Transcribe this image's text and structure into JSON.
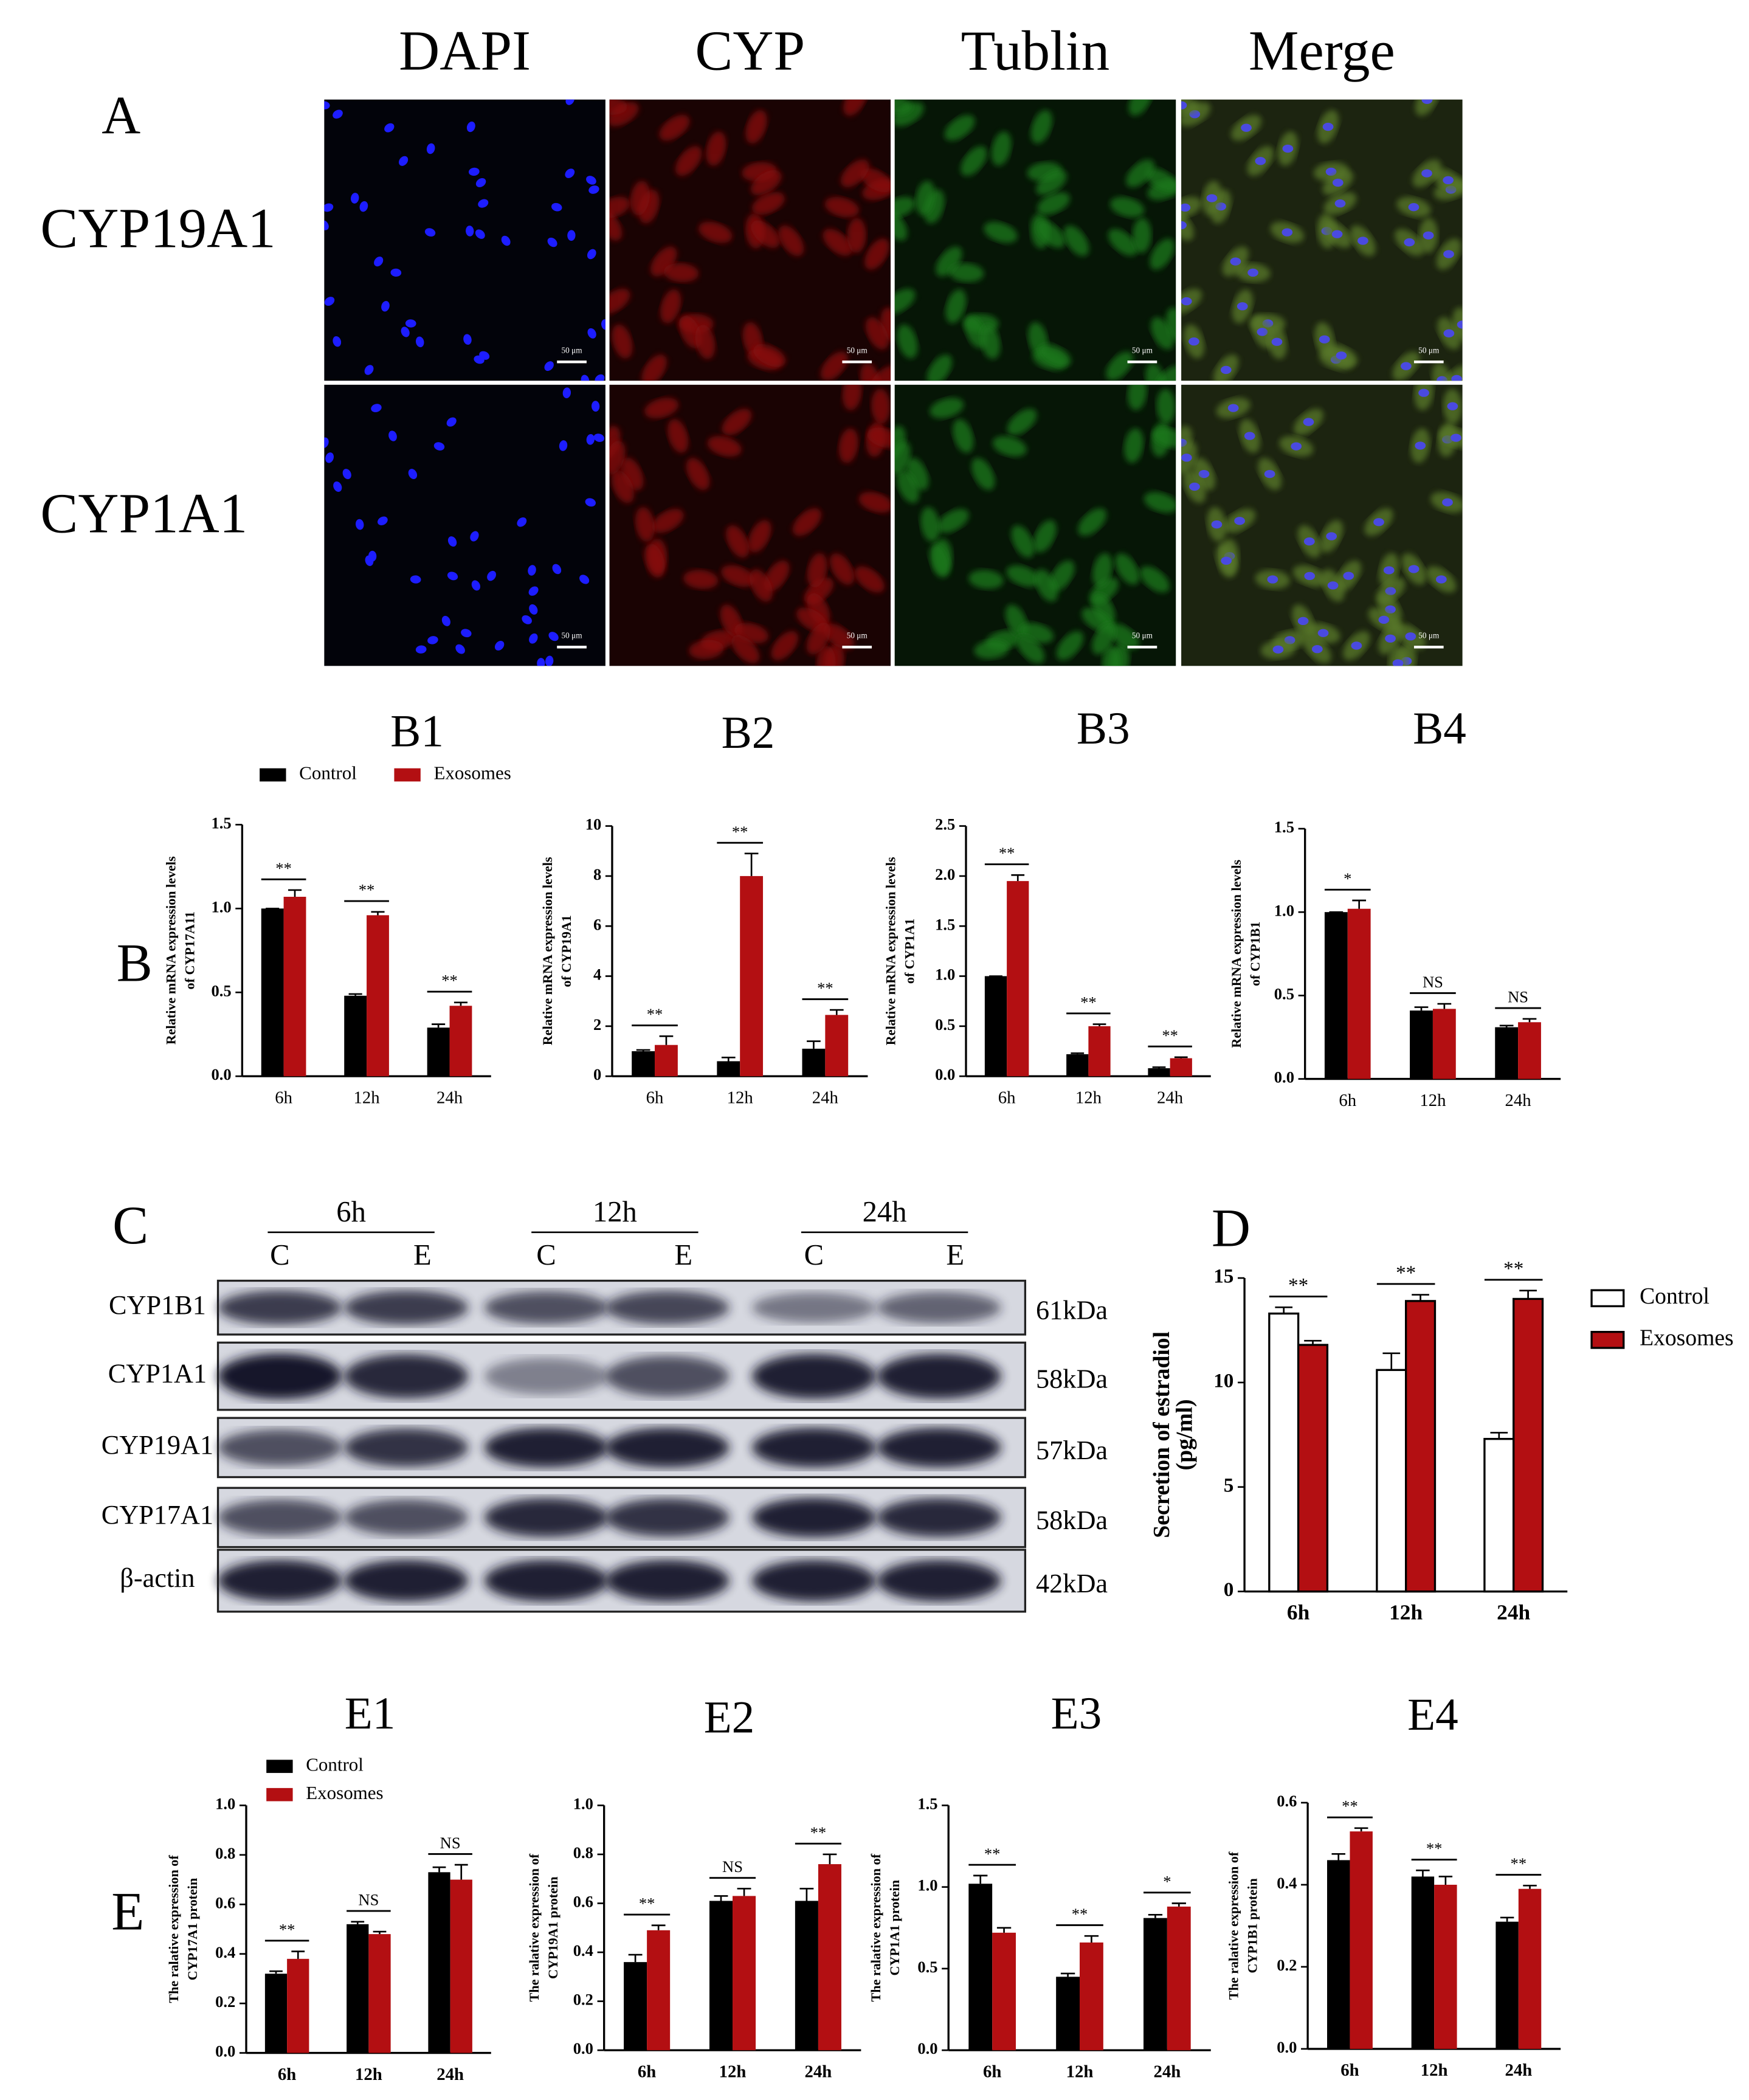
{
  "panel_labels": [
    "A",
    "B",
    "C",
    "D",
    "E"
  ],
  "panel_a": {
    "columns": [
      "DAPI",
      "CYP",
      "Tublin",
      "Merge"
    ],
    "rows": [
      "CYP19A1",
      "CYP1A1"
    ],
    "scale_bar": "50 μm"
  },
  "panel_c": {
    "time_points": [
      "6h",
      "12h",
      "24h"
    ],
    "lanes": [
      "C",
      "E",
      "C",
      "E",
      "C",
      "E"
    ],
    "proteins": [
      {
        "name": "CYP1B1",
        "size": "61kDa"
      },
      {
        "name": "CYP1A1",
        "size": "58kDa"
      },
      {
        "name": "CYP19A1",
        "size": "57kDa"
      },
      {
        "name": "CYP17A1",
        "size": "58kDa"
      },
      {
        "name": "β-actin",
        "size": "42kDa"
      }
    ]
  },
  "chart_data": [
    {
      "type": "bar",
      "title": "B1",
      "ylabel": [
        "Relative mRNA expression levels",
        "of CYP17A11"
      ],
      "categories": [
        "6h",
        "12h",
        "24h"
      ],
      "series": [
        {
          "name": "Control",
          "color": "#000000",
          "values": [
            1.0,
            0.48,
            0.29
          ],
          "errors": [
            0.0,
            0.01,
            0.02
          ]
        },
        {
          "name": "Exosomes",
          "color": "#b30f12",
          "values": [
            1.07,
            0.96,
            0.42
          ],
          "errors": [
            0.04,
            0.02,
            0.02
          ]
        }
      ],
      "significance": [
        "**",
        "**",
        "**"
      ],
      "ylim": [
        0,
        1.5
      ],
      "yticks": [
        {
          "value": 0,
          "label": "0.0"
        },
        0.5,
        {
          "value": 1,
          "label": "1.0"
        },
        1.5
      ],
      "legend": "top"
    },
    {
      "type": "bar",
      "title": "B2",
      "ylabel": [
        "Relative mRNA expression levels",
        "of CYP19A1"
      ],
      "categories": [
        "6h",
        "12h",
        "24h"
      ],
      "series": [
        {
          "color": "#000000",
          "values": [
            1.0,
            0.6,
            1.1
          ],
          "errors": [
            0.05,
            0.15,
            0.3
          ]
        },
        {
          "color": "#b30f12",
          "values": [
            1.25,
            8.0,
            2.45
          ],
          "errors": [
            0.35,
            0.9,
            0.2
          ]
        }
      ],
      "significance": [
        "**",
        "**",
        "**"
      ],
      "ylim": [
        0,
        10
      ],
      "yticks": [
        0,
        2,
        4,
        6,
        8,
        10
      ]
    },
    {
      "type": "bar",
      "title": "B3",
      "ylabel": [
        "Relative mRNA expression levels",
        "of CYP1A1"
      ],
      "categories": [
        "6h",
        "12h",
        "24h"
      ],
      "series": [
        {
          "color": "#000000",
          "values": [
            1.0,
            0.22,
            0.08
          ],
          "errors": [
            0.0,
            0.01,
            0.01
          ]
        },
        {
          "color": "#b30f12",
          "values": [
            1.95,
            0.5,
            0.18
          ],
          "errors": [
            0.06,
            0.02,
            0.01
          ]
        }
      ],
      "significance": [
        "**",
        "**",
        "**"
      ],
      "ylim": [
        0,
        2.5
      ],
      "yticks": [
        {
          "value": 0,
          "label": "0.0"
        },
        0.5,
        {
          "value": 1,
          "label": "1.0"
        },
        1.5,
        {
          "value": 2,
          "label": "2.0"
        },
        2.5
      ]
    },
    {
      "type": "bar",
      "title": "B4",
      "ylabel": [
        "Relative mRNA expression levels",
        "of CYP1B1"
      ],
      "categories": [
        "6h",
        "12h",
        "24h"
      ],
      "series": [
        {
          "color": "#000000",
          "values": [
            1.0,
            0.41,
            0.31
          ],
          "errors": [
            0.0,
            0.02,
            0.01
          ]
        },
        {
          "color": "#b30f12",
          "values": [
            1.02,
            0.42,
            0.34
          ],
          "errors": [
            0.05,
            0.03,
            0.02
          ]
        }
      ],
      "significance": [
        "*",
        "NS",
        "NS"
      ],
      "ylim": [
        0,
        1.5
      ],
      "yticks": [
        {
          "value": 0,
          "label": "0.0"
        },
        0.5,
        {
          "value": 1,
          "label": "1.0"
        },
        1.5
      ]
    },
    {
      "type": "bar",
      "title": null,
      "ylabel": [
        "Secretion of estradiol",
        "(pg/ml)"
      ],
      "categories": [
        "6h",
        "12h",
        "24h"
      ],
      "series": [
        {
          "name": "Control",
          "color": "#ffffff",
          "edgecolor": "#000000",
          "values": [
            13.3,
            10.6,
            7.3
          ],
          "errors": [
            0.3,
            0.8,
            0.3
          ]
        },
        {
          "name": "Exosomes",
          "color": "#b30f12",
          "edgecolor": "#000000",
          "values": [
            11.8,
            13.9,
            14.0
          ],
          "errors": [
            0.2,
            0.3,
            0.4
          ]
        }
      ],
      "significance": [
        "**",
        "**",
        "**"
      ],
      "ylim": [
        0,
        15
      ],
      "yticks": [
        0,
        5,
        10,
        15
      ],
      "legend": "right"
    },
    {
      "type": "bar",
      "title": "E1",
      "ylabel": [
        "The ralative expression of",
        "CYP17A1 protein"
      ],
      "categories": [
        "6h",
        "12h",
        "24h"
      ],
      "series": [
        {
          "name": "Control",
          "color": "#000000",
          "values": [
            0.32,
            0.52,
            0.73
          ],
          "errors": [
            0.01,
            0.01,
            0.02
          ]
        },
        {
          "name": "Exosomes",
          "color": "#b30f12",
          "values": [
            0.38,
            0.48,
            0.7
          ],
          "errors": [
            0.03,
            0.01,
            0.06
          ]
        }
      ],
      "significance": [
        "**",
        "NS",
        "NS"
      ],
      "ylim": [
        0,
        1.0
      ],
      "yticks": [
        {
          "value": 0,
          "label": "0.0"
        },
        0.2,
        0.4,
        0.6,
        0.8,
        {
          "value": 1,
          "label": "1.0"
        }
      ],
      "legend": "top"
    },
    {
      "type": "bar",
      "title": "E2",
      "ylabel": [
        "The ralative expression of",
        "CYP19A1 protein"
      ],
      "categories": [
        "6h",
        "12h",
        "24h"
      ],
      "series": [
        {
          "color": "#000000",
          "values": [
            0.36,
            0.61,
            0.61
          ],
          "errors": [
            0.03,
            0.02,
            0.05
          ]
        },
        {
          "color": "#b30f12",
          "values": [
            0.49,
            0.63,
            0.76
          ],
          "errors": [
            0.02,
            0.03,
            0.04
          ]
        }
      ],
      "significance": [
        "**",
        "NS",
        "**"
      ],
      "ylim": [
        0,
        1.0
      ],
      "yticks": [
        {
          "value": 0,
          "label": "0.0"
        },
        0.2,
        0.4,
        0.6,
        0.8,
        {
          "value": 1,
          "label": "1.0"
        }
      ]
    },
    {
      "type": "bar",
      "title": "E3",
      "ylabel": [
        "The ralative expression of",
        "CYP1A1 protein"
      ],
      "categories": [
        "6h",
        "12h",
        "24h"
      ],
      "series": [
        {
          "color": "#000000",
          "values": [
            1.02,
            0.45,
            0.81
          ],
          "errors": [
            0.05,
            0.02,
            0.02
          ]
        },
        {
          "color": "#b30f12",
          "values": [
            0.72,
            0.66,
            0.88
          ],
          "errors": [
            0.03,
            0.04,
            0.02
          ]
        }
      ],
      "significance": [
        "**",
        "**",
        "*"
      ],
      "ylim": [
        0,
        1.5
      ],
      "yticks": [
        {
          "value": 0,
          "label": "0.0"
        },
        0.5,
        {
          "value": 1,
          "label": "1.0"
        },
        1.5
      ]
    },
    {
      "type": "bar",
      "title": "E4",
      "ylabel": [
        "The ralative expression of",
        "CYP1B1 protein"
      ],
      "categories": [
        "6h",
        "12h",
        "24h"
      ],
      "series": [
        {
          "color": "#000000",
          "values": [
            0.46,
            0.42,
            0.31
          ],
          "errors": [
            0.015,
            0.015,
            0.01
          ]
        },
        {
          "color": "#b30f12",
          "values": [
            0.53,
            0.4,
            0.39
          ],
          "errors": [
            0.008,
            0.02,
            0.008
          ]
        }
      ],
      "significance": [
        "**",
        "**",
        "**"
      ],
      "ylim": [
        0,
        0.6
      ],
      "yticks": [
        {
          "value": 0,
          "label": "0.0"
        },
        0.2,
        0.4,
        0.6
      ]
    }
  ]
}
